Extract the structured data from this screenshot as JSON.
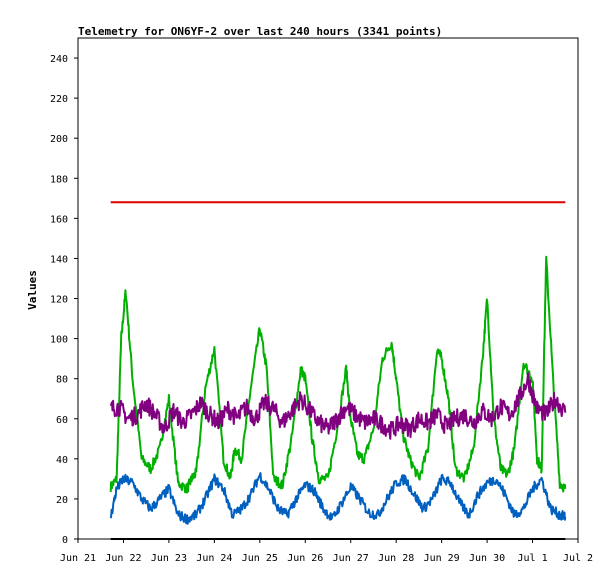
{
  "chart_data": {
    "type": "line",
    "title": "Telemetry for ON6YF-2 over last 240 hours (3341 points)",
    "xlabel": "",
    "ylabel": "Values",
    "xlim": [
      0,
      11
    ],
    "ylim": [
      0,
      250
    ],
    "x_ticks": [
      {
        "x": 0,
        "label": "Jun 21"
      },
      {
        "x": 1,
        "label": "Jun 22"
      },
      {
        "x": 2,
        "label": "Jun 23"
      },
      {
        "x": 3,
        "label": "Jun 24"
      },
      {
        "x": 4,
        "label": "Jun 25"
      },
      {
        "x": 5,
        "label": "Jun 26"
      },
      {
        "x": 6,
        "label": "Jun 27"
      },
      {
        "x": 7,
        "label": "Jun 28"
      },
      {
        "x": 8,
        "label": "Jun 29"
      },
      {
        "x": 9,
        "label": "Jun 30"
      },
      {
        "x": 10,
        "label": "Jul 1"
      },
      {
        "x": 11,
        "label": "Jul 2"
      }
    ],
    "y_ticks": [
      0,
      20,
      40,
      60,
      80,
      100,
      120,
      140,
      160,
      180,
      200,
      220,
      240
    ],
    "grid": false,
    "legend": "none",
    "series": [
      {
        "color": "#e00000",
        "width": 2,
        "x": [
          0.72,
          10.72
        ],
        "y": [
          168,
          168
        ]
      },
      {
        "color": "#00b000",
        "width": 2,
        "x": [
          0.72,
          0.85,
          0.95,
          1.05,
          1.2,
          1.4,
          1.6,
          1.8,
          2.0,
          2.2,
          2.4,
          2.5,
          2.6,
          2.8,
          3.0,
          3.2,
          3.35,
          3.45,
          3.6,
          3.8,
          4.0,
          4.15,
          4.3,
          4.5,
          4.7,
          4.9,
          5.0,
          5.15,
          5.3,
          5.5,
          5.7,
          5.9,
          6.0,
          6.15,
          6.3,
          6.5,
          6.7,
          6.9,
          7.0,
          7.15,
          7.3,
          7.5,
          7.7,
          7.9,
          8.0,
          8.15,
          8.3,
          8.5,
          8.7,
          8.9,
          9.0,
          9.15,
          9.3,
          9.45,
          9.6,
          9.8,
          10.0,
          10.1,
          10.2,
          10.3,
          10.45,
          10.6,
          10.72
        ],
        "y": [
          26,
          30,
          100,
          124,
          80,
          40,
          35,
          45,
          70,
          28,
          25,
          30,
          33,
          75,
          95,
          40,
          30,
          45,
          40,
          75,
          105,
          85,
          30,
          27,
          50,
          85,
          80,
          50,
          30,
          30,
          55,
          85,
          60,
          42,
          40,
          55,
          90,
          98,
          80,
          52,
          40,
          30,
          45,
          95,
          90,
          70,
          35,
          30,
          45,
          90,
          120,
          60,
          35,
          32,
          45,
          88,
          80,
          40,
          35,
          140,
          80,
          28,
          25
        ]
      },
      {
        "color": "#800080",
        "width": 2,
        "x": [
          0.72,
          0.9,
          1.1,
          1.3,
          1.5,
          1.7,
          1.9,
          2.1,
          2.3,
          2.5,
          2.7,
          2.9,
          3.1,
          3.3,
          3.5,
          3.7,
          3.9,
          4.1,
          4.3,
          4.5,
          4.7,
          4.9,
          5.1,
          5.3,
          5.5,
          5.7,
          5.9,
          6.1,
          6.3,
          6.5,
          6.7,
          6.9,
          7.1,
          7.3,
          7.5,
          7.7,
          7.9,
          8.1,
          8.3,
          8.5,
          8.7,
          8.9,
          9.1,
          9.3,
          9.5,
          9.7,
          9.9,
          10.1,
          10.3,
          10.5,
          10.72
        ],
        "y": [
          65,
          66,
          60,
          62,
          68,
          62,
          55,
          64,
          58,
          62,
          68,
          62,
          58,
          65,
          60,
          66,
          60,
          68,
          65,
          58,
          64,
          70,
          64,
          58,
          55,
          60,
          66,
          62,
          58,
          60,
          57,
          54,
          58,
          55,
          60,
          58,
          62,
          56,
          60,
          62,
          58,
          64,
          60,
          66,
          62,
          70,
          80,
          65,
          62,
          70,
          63
        ]
      },
      {
        "color": "#0060c0",
        "width": 2,
        "x": [
          0.72,
          0.85,
          1.0,
          1.2,
          1.4,
          1.6,
          1.8,
          2.0,
          2.2,
          2.4,
          2.6,
          2.8,
          3.0,
          3.2,
          3.4,
          3.6,
          3.8,
          4.0,
          4.2,
          4.4,
          4.6,
          4.8,
          5.0,
          5.2,
          5.4,
          5.6,
          5.8,
          6.0,
          6.2,
          6.4,
          6.6,
          6.8,
          7.0,
          7.2,
          7.4,
          7.6,
          7.8,
          8.0,
          8.2,
          8.4,
          8.6,
          8.8,
          9.0,
          9.2,
          9.4,
          9.6,
          9.8,
          10.0,
          10.2,
          10.4,
          10.6,
          10.72
        ],
        "y": [
          11,
          25,
          30,
          28,
          20,
          15,
          20,
          25,
          12,
          10,
          12,
          20,
          30,
          25,
          12,
          15,
          22,
          32,
          25,
          15,
          12,
          20,
          27,
          24,
          15,
          10,
          18,
          26,
          20,
          13,
          12,
          20,
          28,
          30,
          22,
          15,
          20,
          30,
          28,
          18,
          12,
          22,
          28,
          30,
          22,
          12,
          15,
          25,
          30,
          15,
          12,
          11
        ]
      },
      {
        "color": "#000000",
        "width": 2,
        "x": [
          0.72,
          10.72
        ],
        "y": [
          0,
          0
        ]
      }
    ]
  }
}
